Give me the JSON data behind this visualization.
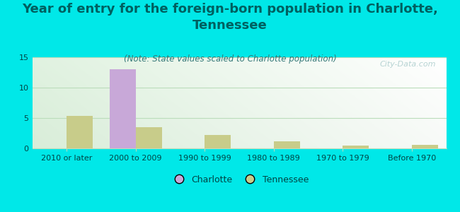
{
  "title": "Year of entry for the foreign-born population in Charlotte,\nTennessee",
  "subtitle": "(Note: State values scaled to Charlotte population)",
  "categories": [
    "2010 or later",
    "2000 to 2009",
    "1990 to 1999",
    "1980 to 1989",
    "1970 to 1979",
    "Before 1970"
  ],
  "charlotte_values": [
    0,
    13,
    0,
    0,
    0,
    0
  ],
  "tennessee_values": [
    5.3,
    3.5,
    2.2,
    1.2,
    0.5,
    0.6
  ],
  "charlotte_color": "#c8a8d8",
  "tennessee_color": "#c8cc8a",
  "background_color": "#00e8e8",
  "plot_bg_topleft": "#d8eed8",
  "plot_bg_topright": "#f8ffff",
  "plot_bg_bottom": "#e8f5e0",
  "ylim": [
    0,
    15
  ],
  "yticks": [
    0,
    5,
    10,
    15
  ],
  "watermark": "City-Data.com",
  "bar_width": 0.38,
  "title_fontsize": 13,
  "subtitle_fontsize": 8.5,
  "tick_fontsize": 8,
  "legend_fontsize": 9,
  "title_color": "#006060",
  "subtitle_color": "#337777",
  "tick_color": "#004444",
  "grid_color": "#bbddbb",
  "watermark_color": "#aacccc"
}
